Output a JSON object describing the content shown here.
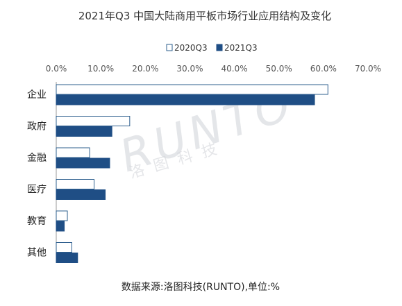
{
  "watermark": {
    "brand": "RUNTO",
    "cn": "洛图科技"
  },
  "footer": {
    "source": "数据来源:洛图科技(RUNTO),单位:%"
  },
  "chart_data": {
    "type": "bar",
    "orientation": "horizontal",
    "title": "2021年Q3 中国大陆商用平板市场行业应用结构及变化",
    "categories": [
      "企业",
      "政府",
      "金融",
      "医疗",
      "教育",
      "其他"
    ],
    "series": [
      {
        "name": "2020Q3",
        "values": [
          61.0,
          16.5,
          7.5,
          8.5,
          2.5,
          3.5
        ],
        "color": "#ffffff",
        "stroke": "#2e5f8e"
      },
      {
        "name": "2021Q3",
        "values": [
          58.0,
          12.5,
          12.0,
          11.0,
          1.8,
          4.8
        ],
        "color": "#1f4e85"
      }
    ],
    "xlim": [
      0,
      70
    ],
    "xticks": [
      "0.0%",
      "10.0%",
      "20.0%",
      "30.0%",
      "40.0%",
      "50.0%",
      "60.0%",
      "70.0%"
    ],
    "xaxis_position": "top",
    "legend": "top-center",
    "grid": false
  }
}
